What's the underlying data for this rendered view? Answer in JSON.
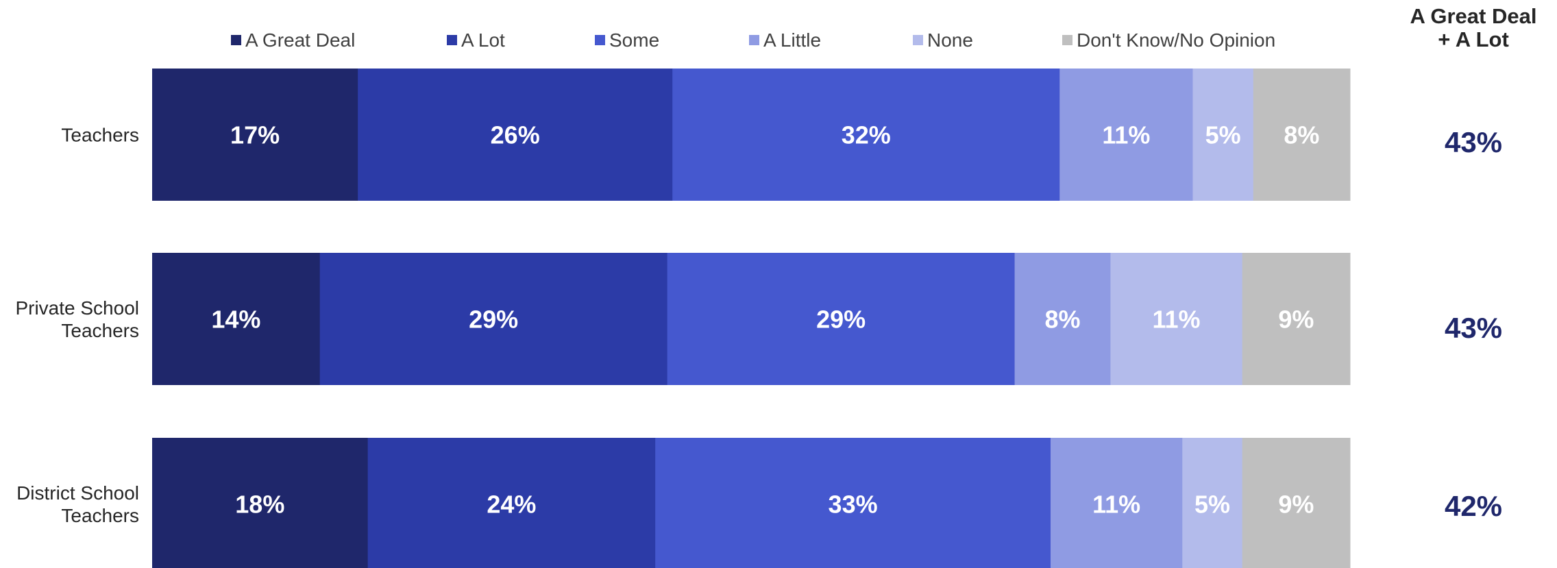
{
  "chart_data": {
    "type": "bar",
    "orientation": "horizontal",
    "stacked": true,
    "normalized": true,
    "legend_position": "top",
    "grid": false,
    "categories": [
      "Teachers",
      "Private School Teachers",
      "District School Teachers"
    ],
    "series": [
      {
        "name": "A Great Deal",
        "color": "#1f276b",
        "values": [
          17,
          14,
          18
        ],
        "labels": [
          "17%",
          "14%",
          "18%"
        ]
      },
      {
        "name": "A Lot",
        "color": "#2c3ba7",
        "values": [
          26,
          29,
          24
        ],
        "labels": [
          "26%",
          "29%",
          "24%"
        ]
      },
      {
        "name": "Some",
        "color": "#4558cf",
        "values": [
          32,
          29,
          33
        ],
        "labels": [
          "32%",
          "29%",
          "33%"
        ]
      },
      {
        "name": "A Little",
        "color": "#8f9be3",
        "values": [
          11,
          8,
          11
        ],
        "labels": [
          "11%",
          "8%",
          "11%"
        ]
      },
      {
        "name": "None",
        "color": "#b3bbeb",
        "values": [
          5,
          11,
          5
        ],
        "labels": [
          "5%",
          "11%",
          "5%"
        ]
      },
      {
        "name": "Don't Know/No Opinion",
        "color": "#bfbfbf",
        "values": [
          8,
          9,
          9
        ],
        "labels": [
          "8%",
          "9%",
          "9%"
        ]
      }
    ],
    "summary": {
      "title": "A Great Deal + A Lot",
      "values": [
        "43%",
        "43%",
        "42%"
      ]
    }
  }
}
